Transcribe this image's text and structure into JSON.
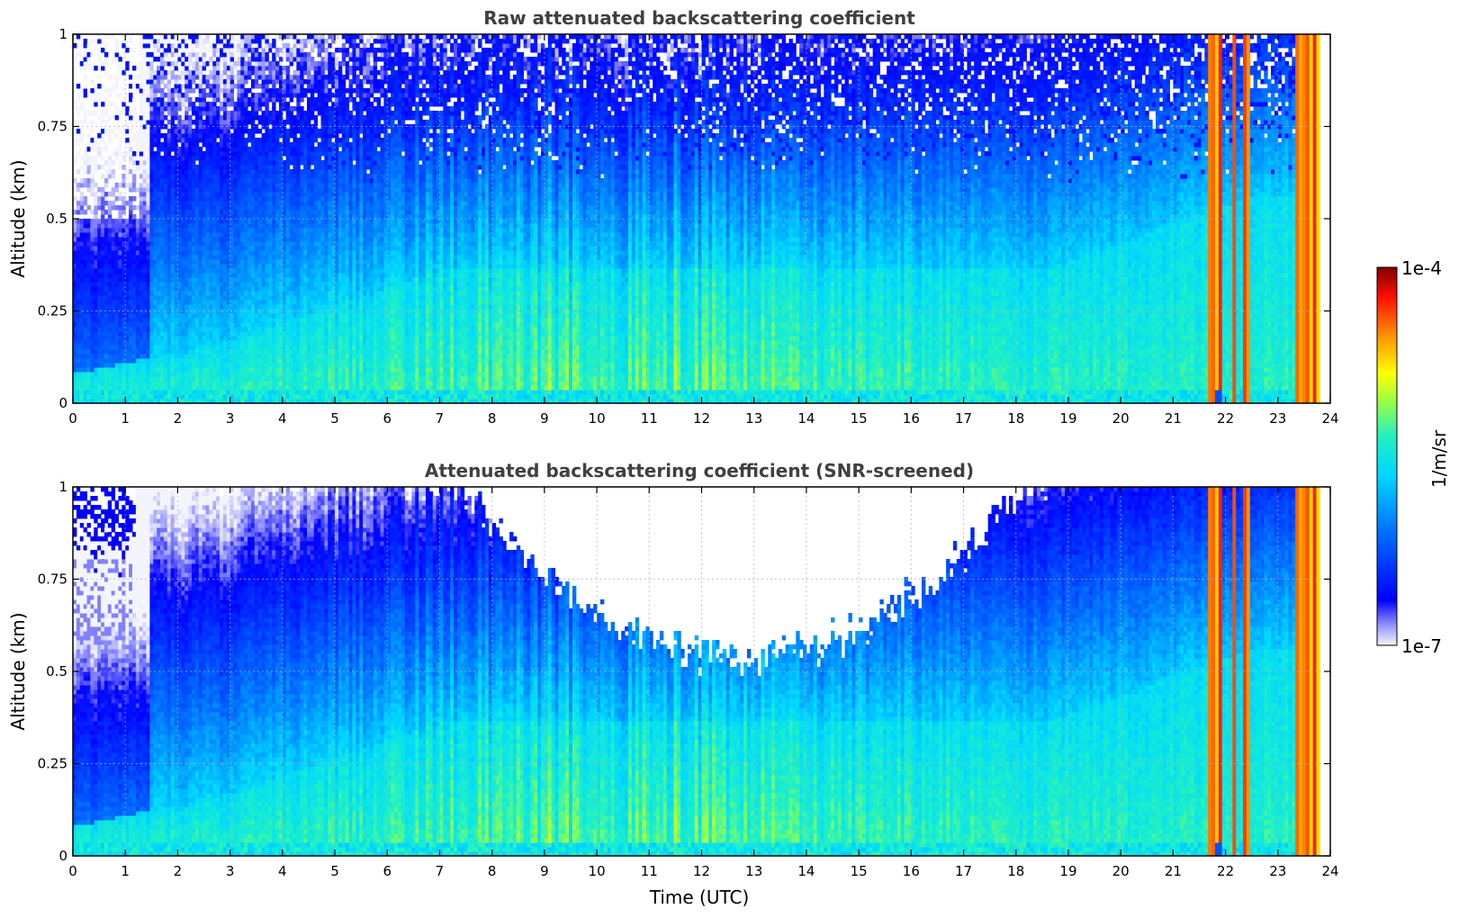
{
  "chart_data": [
    {
      "type": "heatmap",
      "title": "Raw attenuated backscattering coefficient",
      "xlabel": "",
      "ylabel": "Altitude (km)",
      "xlim": [
        0,
        24
      ],
      "ylim": [
        0,
        1
      ],
      "x_ticks": [
        "0",
        "1",
        "2",
        "3",
        "4",
        "5",
        "6",
        "7",
        "8",
        "9",
        "10",
        "11",
        "12",
        "13",
        "14",
        "15",
        "16",
        "17",
        "18",
        "19",
        "20",
        "21",
        "22",
        "23",
        "24"
      ],
      "y_ticks": [
        "0",
        "0.25",
        "0.5",
        "0.75",
        "1"
      ],
      "y_tick_values": [
        0,
        0.25,
        0.5,
        0.75,
        1
      ],
      "grid": true,
      "screened": false
    },
    {
      "type": "heatmap",
      "title": "Attenuated backscattering coefficient (SNR-screened)",
      "xlabel": "Time (UTC)",
      "ylabel": "Altitude (km)",
      "xlim": [
        0,
        24
      ],
      "ylim": [
        0,
        1
      ],
      "x_ticks": [
        "0",
        "1",
        "2",
        "3",
        "4",
        "5",
        "6",
        "7",
        "8",
        "9",
        "10",
        "11",
        "12",
        "13",
        "14",
        "15",
        "16",
        "17",
        "18",
        "19",
        "20",
        "21",
        "22",
        "23",
        "24"
      ],
      "y_ticks": [
        "0",
        "0.25",
        "0.5",
        "0.75",
        "1"
      ],
      "y_tick_values": [
        0,
        0.25,
        0.5,
        0.75,
        1
      ],
      "grid": true,
      "screened": true
    }
  ],
  "colorbar": {
    "max_label": "1e-4",
    "min_label": "1e-7",
    "unit_label": "1/m/sr",
    "colormap": "jet"
  },
  "colors": {
    "title": "#404040",
    "grid": "#b0b0b0"
  }
}
